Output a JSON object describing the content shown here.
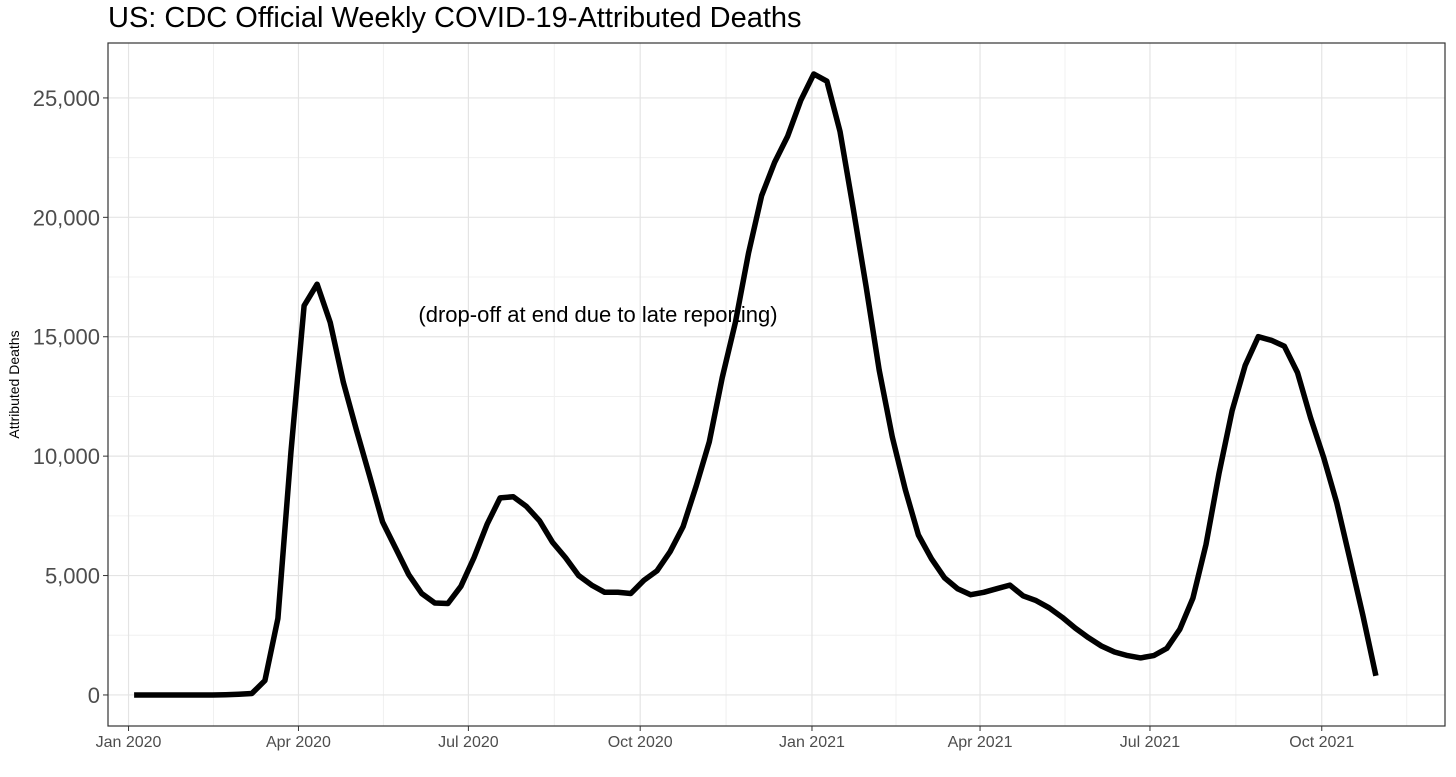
{
  "chart_data": {
    "type": "line",
    "title": "US: CDC Official Weekly COVID-19-Attributed Deaths",
    "xlabel": "",
    "ylabel": "Attributed Deaths",
    "x_ticks": [
      "Jan 2020",
      "Apr 2020",
      "Jul 2020",
      "Oct 2020",
      "Jan 2021",
      "Apr 2021",
      "Jul 2021",
      "Oct 2021"
    ],
    "y_ticks": [
      "0",
      "5,000",
      "10,000",
      "15,000",
      "20,000",
      "25,000"
    ],
    "ylim": [
      -1300,
      27300
    ],
    "xlim": [
      "2019-12-21",
      "2021-12-06"
    ],
    "grid": true,
    "annotation": "(drop-off at end due to late reporting)",
    "series": [
      {
        "color": "#000000",
        "points": [
          [
            "2020-01-04",
            0
          ],
          [
            "2020-01-11",
            0
          ],
          [
            "2020-01-18",
            0
          ],
          [
            "2020-01-25",
            0
          ],
          [
            "2020-02-01",
            0
          ],
          [
            "2020-02-08",
            0
          ],
          [
            "2020-02-15",
            0
          ],
          [
            "2020-02-22",
            10
          ],
          [
            "2020-02-29",
            30
          ],
          [
            "2020-03-07",
            60
          ],
          [
            "2020-03-14",
            600
          ],
          [
            "2020-03-21",
            3200
          ],
          [
            "2020-03-28",
            10200
          ],
          [
            "2020-04-04",
            16300
          ],
          [
            "2020-04-11",
            17200
          ],
          [
            "2020-04-18",
            15600
          ],
          [
            "2020-04-25",
            13100
          ],
          [
            "2020-05-02",
            11100
          ],
          [
            "2020-05-09",
            9200
          ],
          [
            "2020-05-16",
            7250
          ],
          [
            "2020-05-23",
            6150
          ],
          [
            "2020-05-30",
            5050
          ],
          [
            "2020-06-06",
            4250
          ],
          [
            "2020-06-13",
            3850
          ],
          [
            "2020-06-20",
            3830
          ],
          [
            "2020-06-27",
            4550
          ],
          [
            "2020-07-04",
            5750
          ],
          [
            "2020-07-11",
            7150
          ],
          [
            "2020-07-18",
            8250
          ],
          [
            "2020-07-25",
            8300
          ],
          [
            "2020-08-01",
            7900
          ],
          [
            "2020-08-08",
            7300
          ],
          [
            "2020-08-15",
            6400
          ],
          [
            "2020-08-22",
            5750
          ],
          [
            "2020-08-29",
            5000
          ],
          [
            "2020-09-05",
            4600
          ],
          [
            "2020-09-12",
            4300
          ],
          [
            "2020-09-19",
            4300
          ],
          [
            "2020-09-26",
            4250
          ],
          [
            "2020-10-03",
            4800
          ],
          [
            "2020-10-10",
            5200
          ],
          [
            "2020-10-17",
            6000
          ],
          [
            "2020-10-24",
            7050
          ],
          [
            "2020-10-31",
            8750
          ],
          [
            "2020-11-07",
            10600
          ],
          [
            "2020-11-14",
            13300
          ],
          [
            "2020-11-21",
            15600
          ],
          [
            "2020-11-28",
            18500
          ],
          [
            "2020-12-05",
            20900
          ],
          [
            "2020-12-12",
            22300
          ],
          [
            "2020-12-19",
            23400
          ],
          [
            "2020-12-26",
            24900
          ],
          [
            "2021-01-02",
            26000
          ],
          [
            "2021-01-09",
            25700
          ],
          [
            "2021-01-16",
            23600
          ],
          [
            "2021-01-23",
            20400
          ],
          [
            "2021-01-30",
            17100
          ],
          [
            "2021-02-06",
            13600
          ],
          [
            "2021-02-13",
            10800
          ],
          [
            "2021-02-20",
            8600
          ],
          [
            "2021-02-27",
            6700
          ],
          [
            "2021-03-06",
            5700
          ],
          [
            "2021-03-13",
            4900
          ],
          [
            "2021-03-20",
            4450
          ],
          [
            "2021-03-27",
            4200
          ],
          [
            "2021-04-03",
            4300
          ],
          [
            "2021-04-10",
            4450
          ],
          [
            "2021-04-17",
            4600
          ],
          [
            "2021-04-24",
            4150
          ],
          [
            "2021-05-01",
            3950
          ],
          [
            "2021-05-08",
            3650
          ],
          [
            "2021-05-15",
            3250
          ],
          [
            "2021-05-22",
            2800
          ],
          [
            "2021-05-29",
            2400
          ],
          [
            "2021-06-05",
            2050
          ],
          [
            "2021-06-12",
            1800
          ],
          [
            "2021-06-19",
            1650
          ],
          [
            "2021-06-26",
            1550
          ],
          [
            "2021-07-03",
            1650
          ],
          [
            "2021-07-10",
            1950
          ],
          [
            "2021-07-17",
            2750
          ],
          [
            "2021-07-24",
            4050
          ],
          [
            "2021-07-31",
            6300
          ],
          [
            "2021-08-07",
            9300
          ],
          [
            "2021-08-14",
            11900
          ],
          [
            "2021-08-21",
            13800
          ],
          [
            "2021-08-28",
            15000
          ],
          [
            "2021-09-04",
            14850
          ],
          [
            "2021-09-11",
            14600
          ],
          [
            "2021-09-18",
            13500
          ],
          [
            "2021-09-25",
            11600
          ],
          [
            "2021-10-02",
            9950
          ],
          [
            "2021-10-09",
            8050
          ],
          [
            "2021-10-16",
            5700
          ],
          [
            "2021-10-23",
            3350
          ],
          [
            "2021-10-30",
            800
          ]
        ]
      }
    ]
  }
}
